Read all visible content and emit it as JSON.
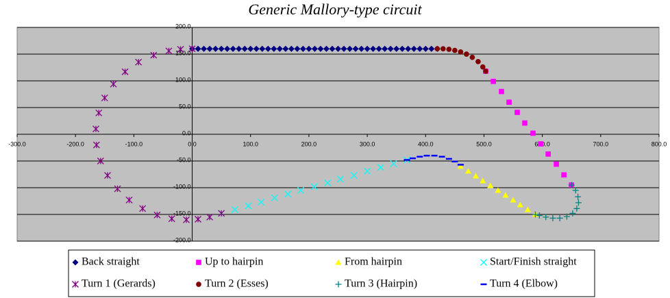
{
  "chart_data": {
    "type": "scatter",
    "title": "Generic Mallory-type circuit",
    "xlim": [
      -300,
      800
    ],
    "ylim": [
      -200,
      200
    ],
    "xticks": [
      {
        "value": -300,
        "label": "-300.0"
      },
      {
        "value": -200,
        "label": "-200.0"
      },
      {
        "value": -100,
        "label": "-100.0"
      },
      {
        "value": 0,
        "label": "0.0"
      },
      {
        "value": 100,
        "label": "100.0"
      },
      {
        "value": 200,
        "label": "200.0"
      },
      {
        "value": 300,
        "label": "300.0"
      },
      {
        "value": 400,
        "label": "400.0"
      },
      {
        "value": 500,
        "label": "500.0"
      },
      {
        "value": 600,
        "label": "600.0"
      },
      {
        "value": 700,
        "label": "700.0"
      },
      {
        "value": 800,
        "label": "800.0"
      }
    ],
    "yticks": [
      {
        "value": -200,
        "label": "-200.0"
      },
      {
        "value": -150,
        "label": "-150.0"
      },
      {
        "value": -100,
        "label": "-100.0"
      },
      {
        "value": -50,
        "label": "-50.0"
      },
      {
        "value": 0,
        "label": "0.0"
      },
      {
        "value": 50,
        "label": "50.0"
      },
      {
        "value": 100,
        "label": "100.0"
      },
      {
        "value": 150,
        "label": "150.0"
      },
      {
        "value": 200,
        "label": "200.0"
      }
    ],
    "grid": true,
    "series": [
      {
        "name": "Back straight",
        "color": "#000080",
        "marker": "diamond",
        "x": [
          0,
          10,
          20,
          30,
          40,
          50,
          60,
          70,
          80,
          90,
          100,
          110,
          120,
          130,
          140,
          150,
          160,
          170,
          180,
          190,
          200,
          210,
          220,
          230,
          240,
          250,
          260,
          270,
          280,
          290,
          300,
          310,
          320,
          330,
          340,
          350,
          360,
          370,
          380,
          390,
          400,
          410,
          420
        ],
        "values": [
          160,
          160,
          160,
          160,
          160,
          160,
          160,
          160,
          160,
          160,
          160,
          160,
          160,
          160,
          160,
          160,
          160,
          160,
          160,
          160,
          160,
          160,
          160,
          160,
          160,
          160,
          160,
          160,
          160,
          160,
          160,
          160,
          160,
          160,
          160,
          160,
          160,
          160,
          160,
          160,
          160,
          160,
          160
        ]
      },
      {
        "name": "Up to hairpin",
        "color": "#FF00FF",
        "marker": "square",
        "x": [
          503,
          516,
          530,
          543,
          557,
          570,
          584,
          597,
          610,
          624,
          637,
          650
        ],
        "values": [
          118,
          99,
          80,
          60,
          41,
          21,
          2,
          -18,
          -37,
          -56,
          -76,
          -95
        ]
      },
      {
        "name": "From hairpin",
        "color": "#FFFF00",
        "marker": "triangle",
        "x": [
          588,
          575,
          562,
          550,
          537,
          524,
          511,
          498,
          486,
          473,
          460
        ],
        "values": [
          -150,
          -141,
          -132,
          -123,
          -114,
          -105,
          -96,
          -87,
          -78,
          -69,
          -60
        ]
      },
      {
        "name": "Start/Finish straight",
        "color": "#00FFFF",
        "marker": "x",
        "x": [
          368,
          345,
          323,
          300,
          277,
          254,
          232,
          209,
          186,
          164,
          141,
          118,
          96,
          73,
          50
        ],
        "values": [
          -48,
          -55,
          -62,
          -69,
          -77,
          -84,
          -91,
          -98,
          -105,
          -112,
          -119,
          -127,
          -134,
          -141,
          -148
        ]
      },
      {
        "name": "Turn 1 (Gerards)",
        "color": "#800080",
        "marker": "star",
        "x": [
          50,
          30,
          10,
          -10,
          -35,
          -60,
          -85,
          -108,
          -128,
          -145,
          -157,
          -164,
          -165,
          -160,
          -150,
          -135,
          -115,
          -92,
          -66,
          -40,
          -20,
          0
        ],
        "values": [
          -148,
          -155,
          -159,
          -160,
          -158,
          -151,
          -139,
          -123,
          -102,
          -77,
          -50,
          -20,
          10,
          40,
          68,
          94,
          117,
          135,
          148,
          156,
          159,
          160
        ]
      },
      {
        "name": "Turn 2 (Esses)",
        "color": "#800000",
        "marker": "circle",
        "x": [
          420,
          430,
          440,
          450,
          460,
          470,
          480,
          490,
          498,
          503
        ],
        "values": [
          160,
          160,
          159,
          157,
          154,
          150,
          144,
          136,
          126,
          118
        ]
      },
      {
        "name": "Turn 3 (Hairpin)",
        "color": "#008080",
        "marker": "plus",
        "x": [
          650,
          657,
          661,
          662,
          659,
          652,
          642,
          630,
          618,
          606,
          595,
          588
        ],
        "values": [
          -95,
          -105,
          -117,
          -128,
          -139,
          -148,
          -154,
          -157,
          -157,
          -155,
          -152,
          -150
        ]
      },
      {
        "name": "Turn 4 (Elbow)",
        "color": "#0000FF",
        "marker": "dash",
        "x": [
          460,
          450,
          440,
          428,
          415,
          402,
          390,
          378,
          368
        ],
        "values": [
          -57,
          -51,
          -46,
          -42,
          -40,
          -40,
          -42,
          -45,
          -48
        ]
      }
    ]
  }
}
